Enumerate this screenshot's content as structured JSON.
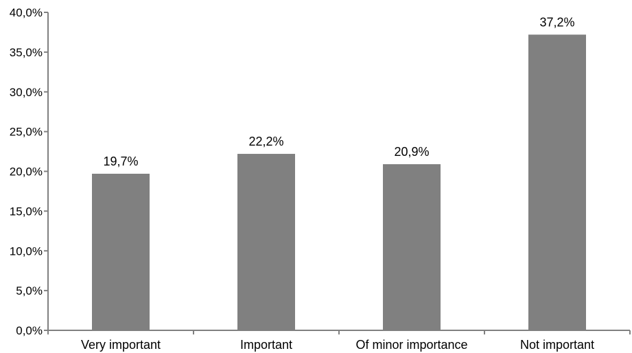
{
  "chart_data": {
    "type": "bar",
    "title": "",
    "xlabel": "",
    "ylabel": "",
    "categories": [
      "Very important",
      "Important",
      "Of minor importance",
      "Not important"
    ],
    "values": [
      19.7,
      22.2,
      20.9,
      37.2
    ],
    "value_labels": [
      "19,7%",
      "22,2%",
      "20,9%",
      "37,2%"
    ],
    "ylim": [
      0,
      40
    ],
    "yticks": [
      0,
      5,
      10,
      15,
      20,
      25,
      30,
      35,
      40
    ],
    "ytick_labels": [
      "0,0%",
      "5,0%",
      "10,0%",
      "15,0%",
      "20,0%",
      "25,0%",
      "30,0%",
      "35,0%",
      "40,0%"
    ],
    "grid": false,
    "legend": "none",
    "bar_color": "#808080",
    "axis_color": "#808080"
  }
}
